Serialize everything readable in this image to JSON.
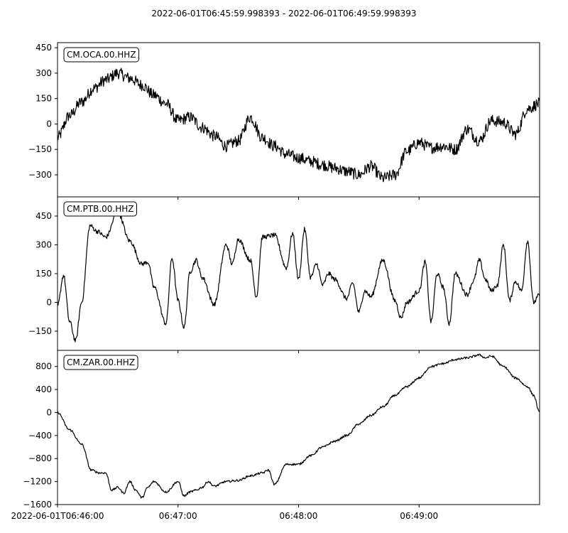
{
  "title": "2022-06-01T06:45:59.998393  -  2022-06-01T06:49:59.998393",
  "chart_data": [
    {
      "type": "line",
      "channel": "CM.OCA.00.HHZ",
      "ylim": [
        -430,
        480
      ],
      "yticks": [
        -300,
        -150,
        0,
        150,
        300,
        450
      ],
      "grid": false,
      "x_unit": "minutes after 2022-06-01T06:45:59.998393",
      "series": [
        {
          "x": [
            0.0,
            0.1,
            0.2,
            0.3,
            0.4,
            0.5,
            0.6,
            0.7,
            0.8,
            0.9,
            1.0,
            1.1,
            1.2,
            1.3,
            1.4,
            1.5,
            1.6,
            1.7,
            1.8,
            1.9,
            2.0,
            2.1,
            2.2,
            2.3,
            2.4,
            2.5,
            2.6,
            2.7,
            2.8,
            2.9,
            3.0,
            3.1,
            3.2,
            3.3,
            3.4,
            3.5,
            3.6,
            3.7,
            3.8,
            3.9,
            4.0
          ],
          "y": [
            -80,
            50,
            130,
            210,
            260,
            300,
            270,
            230,
            170,
            120,
            20,
            40,
            -20,
            -70,
            -130,
            -100,
            40,
            -80,
            -130,
            -180,
            -200,
            -220,
            -240,
            -260,
            -280,
            -300,
            -250,
            -320,
            -300,
            -160,
            -110,
            -140,
            -130,
            -150,
            -30,
            -100,
            20,
            10,
            -60,
            90,
            120
          ],
          "noise": 35
        }
      ]
    },
    {
      "type": "line",
      "channel": "CM.PTB.00.HHZ",
      "ylim": [
        -250,
        550
      ],
      "yticks": [
        -150,
        0,
        150,
        300,
        450
      ],
      "grid": false,
      "x_unit": "minutes after 2022-06-01T06:45:59.998393",
      "series": [
        {
          "x": [
            0.0,
            0.05,
            0.1,
            0.15,
            0.2,
            0.27,
            0.33,
            0.4,
            0.5,
            0.6,
            0.7,
            0.75,
            0.8,
            0.9,
            0.95,
            1.0,
            1.05,
            1.1,
            1.15,
            1.2,
            1.3,
            1.4,
            1.45,
            1.5,
            1.6,
            1.65,
            1.7,
            1.8,
            1.9,
            1.95,
            2.0,
            2.05,
            2.1,
            2.15,
            2.2,
            2.25,
            2.3,
            2.4,
            2.45,
            2.5,
            2.55,
            2.6,
            2.7,
            2.8,
            2.85,
            2.9,
            3.0,
            3.05,
            3.1,
            3.15,
            3.2,
            3.25,
            3.3,
            3.4,
            3.45,
            3.5,
            3.55,
            3.6,
            3.65,
            3.7,
            3.75,
            3.8,
            3.85,
            3.9,
            3.95,
            4.0
          ],
          "y": [
            -20,
            140,
            -100,
            -200,
            0,
            400,
            370,
            340,
            470,
            320,
            200,
            210,
            80,
            -110,
            230,
            10,
            -130,
            160,
            220,
            130,
            -10,
            300,
            200,
            330,
            220,
            30,
            340,
            350,
            180,
            360,
            120,
            380,
            130,
            200,
            90,
            150,
            120,
            20,
            100,
            -50,
            60,
            30,
            220,
            10,
            -80,
            0,
            60,
            210,
            -100,
            150,
            80,
            -110,
            150,
            40,
            110,
            220,
            120,
            60,
            90,
            300,
            10,
            110,
            60,
            320,
            0,
            40
          ],
          "noise": 12
        }
      ]
    },
    {
      "type": "line",
      "channel": "CM.ZAR.00.HHZ",
      "ylim": [
        -1600,
        1080
      ],
      "yticks": [
        -1600,
        -1200,
        -800,
        -400,
        0,
        400,
        800
      ],
      "grid": false,
      "x_unit": "minutes after 2022-06-01T06:45:59.998393",
      "xtick_values": [
        0,
        1,
        2,
        3
      ],
      "xtick_labels": [
        "2022-06-01T06:46:00",
        "06:47:00",
        "06:48:00",
        "06:49:00"
      ],
      "series": [
        {
          "x": [
            0.0,
            0.1,
            0.2,
            0.28,
            0.35,
            0.4,
            0.45,
            0.5,
            0.55,
            0.6,
            0.65,
            0.7,
            0.75,
            0.8,
            0.9,
            1.0,
            1.05,
            1.1,
            1.15,
            1.2,
            1.25,
            1.3,
            1.4,
            1.5,
            1.6,
            1.7,
            1.75,
            1.8,
            1.9,
            2.0,
            2.1,
            2.2,
            2.3,
            2.4,
            2.5,
            2.6,
            2.7,
            2.8,
            2.9,
            3.0,
            3.1,
            3.2,
            3.3,
            3.4,
            3.5,
            3.55,
            3.6,
            3.7,
            3.8,
            3.9,
            3.95,
            4.0
          ],
          "y": [
            0,
            -300,
            -550,
            -1000,
            -1050,
            -1050,
            -1350,
            -1300,
            -1400,
            -1200,
            -1350,
            -1480,
            -1300,
            -1200,
            -1380,
            -1200,
            -1450,
            -1380,
            -1350,
            -1300,
            -1200,
            -1280,
            -1200,
            -1180,
            -1100,
            -1050,
            -1000,
            -1250,
            -900,
            -900,
            -750,
            -600,
            -500,
            -400,
            -200,
            -50,
            100,
            300,
            450,
            600,
            800,
            850,
            920,
            950,
            1000,
            950,
            980,
            800,
            600,
            450,
            300,
            0
          ],
          "noise": 18
        }
      ]
    }
  ]
}
